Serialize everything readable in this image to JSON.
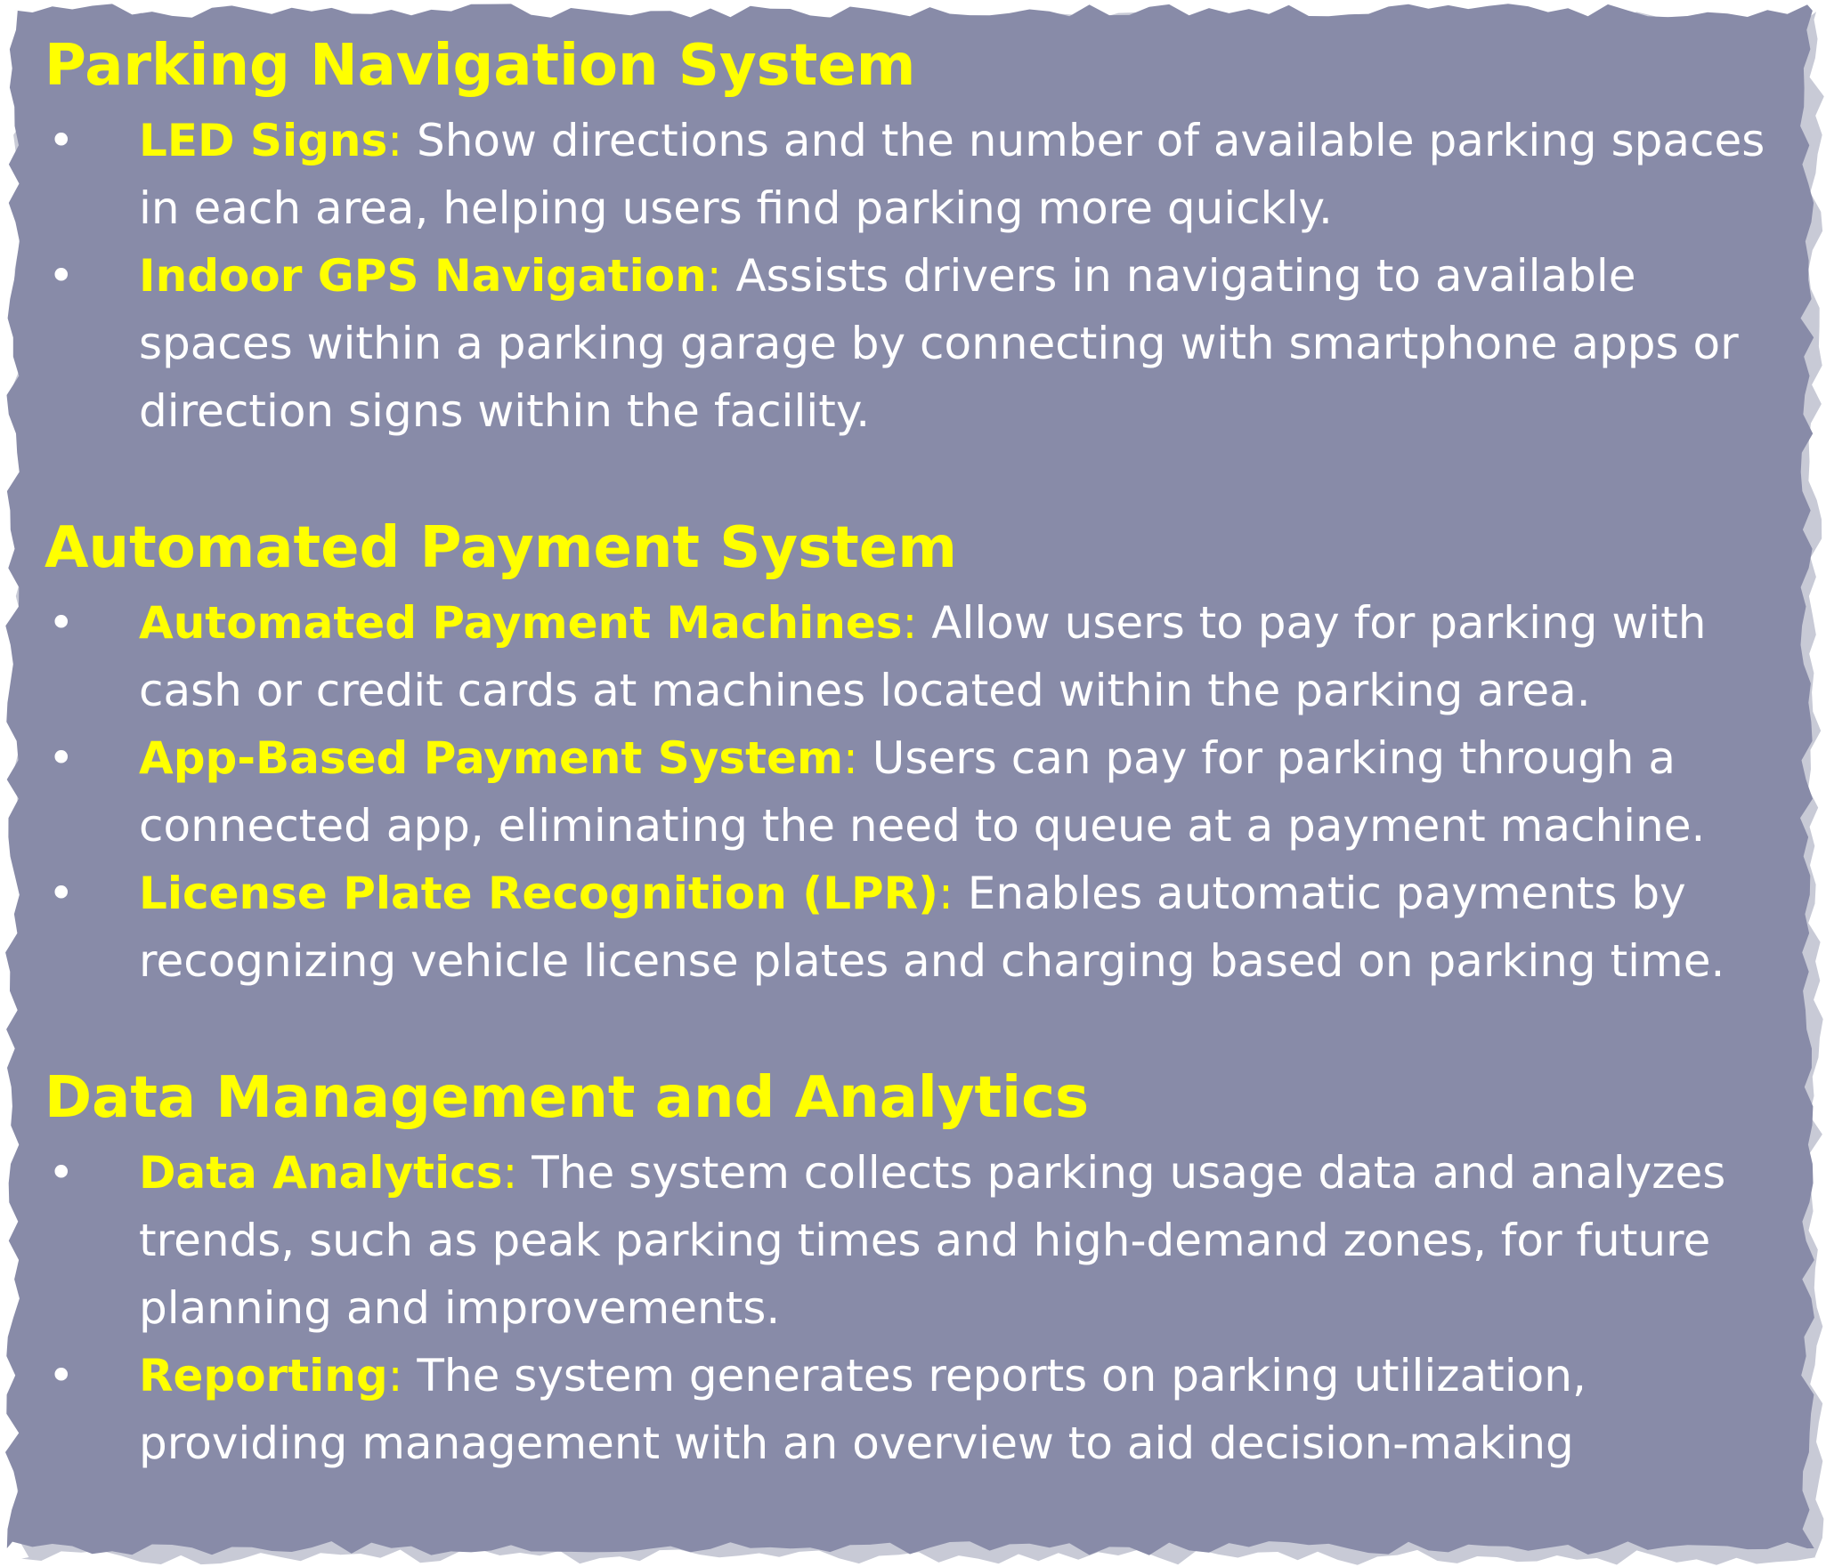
{
  "colors": {
    "panel": "#888ba8",
    "shadow": "#c8cad6",
    "heading": "#ffff00",
    "body_text": "#ffffff"
  },
  "bullet_glyph": "•",
  "separator": ":",
  "sections": [
    {
      "title": "Parking Navigation System",
      "items": [
        {
          "term": "LED Signs",
          "text": " Show directions and the number of available parking spaces in each area, helping users find parking more quickly."
        },
        {
          "term": "Indoor GPS Navigation",
          "text": " Assists drivers in navigating to available spaces within a parking garage by connecting with smartphone apps or direction signs within the facility."
        }
      ]
    },
    {
      "title": "Automated Payment System",
      "items": [
        {
          "term": "Automated Payment Machines",
          "text": " Allow users to pay for parking with cash or credit cards at machines located within the parking area."
        },
        {
          "term": "App-Based Payment System",
          "text": " Users can pay for parking through a connected app, eliminating the need to queue at a payment machine."
        },
        {
          "term": "License Plate Recognition (LPR)",
          "text": " Enables automatic payments by recognizing vehicle license plates and charging based on parking time."
        }
      ]
    },
    {
      "title": "Data Management and Analytics",
      "items": [
        {
          "term": "Data Analytics",
          "text": " The system collects parking usage data and analyzes trends, such as peak parking times and high-demand zones, for future planning and improvements."
        },
        {
          "term": "Reporting",
          "text": " The system generates reports on parking utilization, providing management with an overview to aid decision-making"
        }
      ]
    }
  ]
}
